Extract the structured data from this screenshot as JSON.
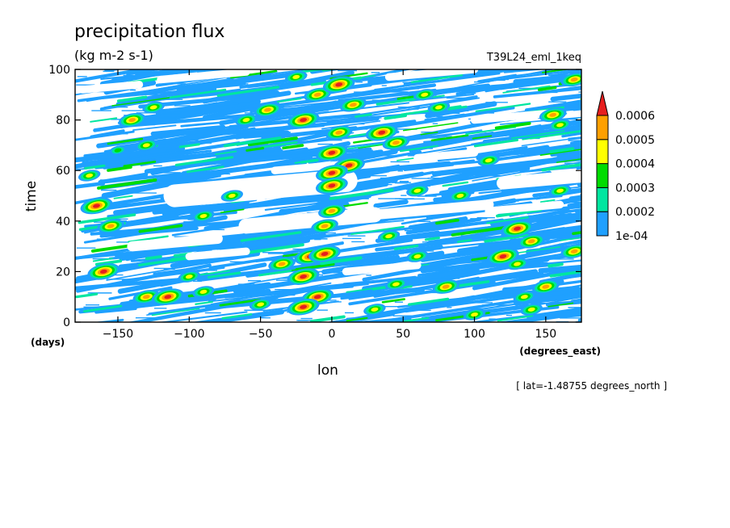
{
  "chart_data": {
    "type": "heatmap",
    "title": "precipitation flux",
    "units": "(kg m-2 s-1)",
    "run_label": "T39L24_eml_1keq",
    "xlabel": "lon",
    "x_units": "(degrees_east)",
    "ylabel": "time",
    "y_units": "(days)",
    "xlim": [
      -180,
      175
    ],
    "ylim": [
      0,
      100
    ],
    "x_ticks": [
      -150,
      -100,
      -50,
      0,
      50,
      100,
      150
    ],
    "x_tick_labels": [
      "−150",
      "−100",
      "−50",
      "0",
      "50",
      "100",
      "150"
    ],
    "y_ticks": [
      0,
      20,
      40,
      60,
      80,
      100
    ],
    "y_tick_labels": [
      "0",
      "20",
      "40",
      "60",
      "80",
      "100"
    ],
    "colorbar": {
      "levels": [
        0.0001,
        0.0002,
        0.0003,
        0.0004,
        0.0005,
        0.0006
      ],
      "labels": [
        "1e-04",
        "0.0002",
        "0.0003",
        "0.0004",
        "0.0005",
        "0.0006"
      ],
      "colors": [
        "#1fa0ff",
        "#00e6a0",
        "#00dc00",
        "#ffff00",
        "#ffa000",
        "#e61e1e"
      ],
      "extend": "max"
    },
    "note": "[ lat=-1.48755 degrees_north ]",
    "features": [
      {
        "lon": -140,
        "t": 80,
        "level": 5
      },
      {
        "lon": -125,
        "t": 85,
        "level": 4
      },
      {
        "lon": -130,
        "t": 70,
        "level": 4
      },
      {
        "lon": -150,
        "t": 68,
        "level": 3
      },
      {
        "lon": -170,
        "t": 58,
        "level": 4
      },
      {
        "lon": -165,
        "t": 46,
        "level": 6
      },
      {
        "lon": -155,
        "t": 38,
        "level": 5
      },
      {
        "lon": -160,
        "t": 20,
        "level": 6
      },
      {
        "lon": -130,
        "t": 10,
        "level": 5
      },
      {
        "lon": -115,
        "t": 10,
        "level": 6
      },
      {
        "lon": -100,
        "t": 18,
        "level": 4
      },
      {
        "lon": -90,
        "t": 42,
        "level": 4
      },
      {
        "lon": -70,
        "t": 50,
        "level": 4
      },
      {
        "lon": -60,
        "t": 80,
        "level": 4
      },
      {
        "lon": -45,
        "t": 84,
        "level": 5
      },
      {
        "lon": -20,
        "t": 80,
        "level": 6
      },
      {
        "lon": -25,
        "t": 97,
        "level": 4
      },
      {
        "lon": -10,
        "t": 90,
        "level": 5
      },
      {
        "lon": 5,
        "t": 94,
        "level": 6
      },
      {
        "lon": 15,
        "t": 86,
        "level": 5
      },
      {
        "lon": 5,
        "t": 75,
        "level": 5
      },
      {
        "lon": 0,
        "t": 67,
        "level": 6
      },
      {
        "lon": 12,
        "t": 62,
        "level": 6
      },
      {
        "lon": 0,
        "t": 59,
        "level": 6
      },
      {
        "lon": 0,
        "t": 54,
        "level": 6
      },
      {
        "lon": 0,
        "t": 44,
        "level": 5
      },
      {
        "lon": -5,
        "t": 38,
        "level": 5
      },
      {
        "lon": -35,
        "t": 23,
        "level": 5
      },
      {
        "lon": -15,
        "t": 26,
        "level": 6
      },
      {
        "lon": -5,
        "t": 27,
        "level": 6
      },
      {
        "lon": -20,
        "t": 18,
        "level": 6
      },
      {
        "lon": -10,
        "t": 10,
        "level": 6
      },
      {
        "lon": -20,
        "t": 6,
        "level": 6
      },
      {
        "lon": -50,
        "t": 7,
        "level": 4
      },
      {
        "lon": -90,
        "t": 12,
        "level": 4
      },
      {
        "lon": 35,
        "t": 75,
        "level": 6
      },
      {
        "lon": 45,
        "t": 71,
        "level": 5
      },
      {
        "lon": 60,
        "t": 52,
        "level": 4
      },
      {
        "lon": 90,
        "t": 50,
        "level": 4
      },
      {
        "lon": 40,
        "t": 34,
        "level": 4
      },
      {
        "lon": 60,
        "t": 26,
        "level": 4
      },
      {
        "lon": 80,
        "t": 14,
        "level": 5
      },
      {
        "lon": 45,
        "t": 15,
        "level": 4
      },
      {
        "lon": 75,
        "t": 85,
        "level": 4
      },
      {
        "lon": 65,
        "t": 90,
        "level": 4
      },
      {
        "lon": 130,
        "t": 37,
        "level": 6
      },
      {
        "lon": 140,
        "t": 32,
        "level": 5
      },
      {
        "lon": 120,
        "t": 26,
        "level": 6
      },
      {
        "lon": 130,
        "t": 23,
        "level": 4
      },
      {
        "lon": 150,
        "t": 14,
        "level": 5
      },
      {
        "lon": 135,
        "t": 10,
        "level": 4
      },
      {
        "lon": 160,
        "t": 78,
        "level": 4
      },
      {
        "lon": 155,
        "t": 82,
        "level": 5
      },
      {
        "lon": 170,
        "t": 28,
        "level": 5
      },
      {
        "lon": 170,
        "t": 96,
        "level": 5
      },
      {
        "lon": 160,
        "t": 52,
        "level": 4
      },
      {
        "lon": 110,
        "t": 64,
        "level": 4
      },
      {
        "lon": 100,
        "t": 3,
        "level": 4
      },
      {
        "lon": 30,
        "t": 5,
        "level": 4
      },
      {
        "lon": 140,
        "t": 5,
        "level": 4
      }
    ]
  }
}
